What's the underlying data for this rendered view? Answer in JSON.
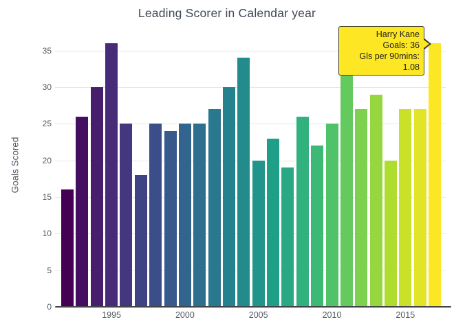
{
  "chart_data": {
    "type": "bar",
    "title": "Leading Scorer in Calendar year",
    "xlabel": "",
    "ylabel": "Goals Scored",
    "x": [
      1992,
      1993,
      1994,
      1995,
      1996,
      1997,
      1998,
      1999,
      2000,
      2001,
      2002,
      2003,
      2004,
      2005,
      2006,
      2007,
      2008,
      2009,
      2010,
      2011,
      2012,
      2013,
      2014,
      2015,
      2016,
      2017
    ],
    "values": [
      16,
      26,
      30,
      36,
      25,
      18,
      25,
      24,
      25,
      25,
      27,
      30,
      34,
      20,
      23,
      19,
      26,
      22,
      25,
      35,
      27,
      29,
      20,
      27,
      27,
      36
    ],
    "bar_colors": [
      "#440154",
      "#450f61",
      "#471d6e",
      "#472b79",
      "#44367f",
      "#404286",
      "#3c4e8a",
      "#37598c",
      "#33648d",
      "#2e6e8e",
      "#2a788e",
      "#26818e",
      "#248b8c",
      "#21958b",
      "#209f88",
      "#28a883",
      "#30b17d",
      "#3cba75",
      "#50c269",
      "#65ca5d",
      "#7cd14f",
      "#96d73f",
      "#afdd2f",
      "#c9e129",
      "#e3e427",
      "#fde725"
    ],
    "ylim": [
      0,
      37.5
    ],
    "yticks": [
      0,
      5,
      10,
      15,
      20,
      25,
      30,
      35
    ],
    "xticks": [
      1995,
      2000,
      2005,
      2010,
      2015
    ],
    "grid": true,
    "legend": false,
    "tooltip": {
      "name": "Harry Kane",
      "goals_line": "Goals: 36",
      "per90_line": "Gls per 90mins: 1.08",
      "target_year": 2017,
      "bg_color": "#fde725",
      "border_color": "#3c3c24"
    }
  },
  "colors": {
    "background": "#ffffff",
    "gridline": "#e7e7e7",
    "axis_line": "#42464b",
    "tick_label": "#545b64",
    "title": "#3f4854"
  }
}
